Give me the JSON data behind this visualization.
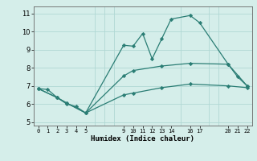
{
  "xlabel": "Humidex (Indice chaleur)",
  "ylabel": "",
  "xlim": [
    -0.5,
    22.5
  ],
  "ylim": [
    4.8,
    11.4
  ],
  "xticks": [
    0,
    1,
    2,
    3,
    4,
    5,
    9,
    10,
    11,
    12,
    13,
    14,
    16,
    17,
    20,
    21,
    22
  ],
  "yticks": [
    5,
    6,
    7,
    8,
    9,
    10,
    11
  ],
  "bg_color": "#d5eeea",
  "grid_color": "#b0d8d4",
  "line_color": "#2a7d74",
  "lines": [
    {
      "x": [
        0,
        1,
        2,
        3,
        4,
        5,
        9,
        10,
        11,
        12,
        13,
        14,
        16,
        17,
        20,
        21,
        22
      ],
      "y": [
        6.85,
        6.8,
        6.35,
        6.0,
        5.85,
        5.5,
        9.25,
        9.2,
        9.9,
        8.5,
        9.6,
        10.7,
        10.9,
        10.5,
        8.2,
        7.5,
        7.0
      ]
    },
    {
      "x": [
        0,
        2,
        3,
        5,
        9,
        10,
        13,
        16,
        20,
        22
      ],
      "y": [
        6.85,
        6.35,
        6.05,
        5.5,
        7.55,
        7.85,
        8.1,
        8.25,
        8.2,
        7.0
      ]
    },
    {
      "x": [
        0,
        2,
        3,
        5,
        9,
        10,
        13,
        16,
        20,
        22
      ],
      "y": [
        6.85,
        6.35,
        6.05,
        5.5,
        6.5,
        6.6,
        6.9,
        7.1,
        7.0,
        6.9
      ]
    }
  ]
}
